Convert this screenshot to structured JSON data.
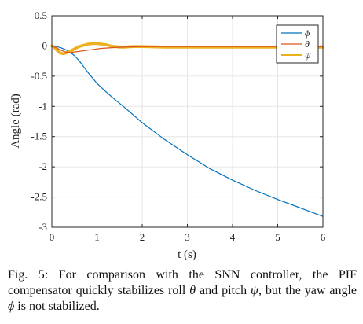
{
  "chart_data": {
    "type": "line",
    "xlabel": "t (s)",
    "ylabel": "Angle (rad)",
    "xlim": [
      0,
      6
    ],
    "ylim": [
      -3,
      0.5
    ],
    "xticks": [
      "0",
      "1",
      "2",
      "3",
      "4",
      "5",
      "6"
    ],
    "yticks": [
      "0.5",
      "0",
      "-0.5",
      "-1",
      "-1.5",
      "-2",
      "-2.5",
      "-3"
    ],
    "grid": true,
    "legend_position": "top-right",
    "series": [
      {
        "name": "ϕ",
        "color": "#0072BD",
        "x": [
          0,
          0.1,
          0.2,
          0.3,
          0.4,
          0.5,
          0.6,
          0.7,
          0.8,
          0.9,
          1.0,
          1.2,
          1.4,
          1.6,
          1.8,
          2.0,
          2.5,
          3.0,
          3.5,
          4.0,
          4.5,
          5.0,
          5.5,
          6.0
        ],
        "y": [
          0,
          -0.01,
          -0.03,
          -0.06,
          -0.1,
          -0.16,
          -0.24,
          -0.34,
          -0.44,
          -0.53,
          -0.62,
          -0.76,
          -0.89,
          -1.01,
          -1.14,
          -1.27,
          -1.55,
          -1.8,
          -2.03,
          -2.22,
          -2.39,
          -2.54,
          -2.68,
          -2.82
        ]
      },
      {
        "name": "θ",
        "color": "#D95319",
        "x": [
          0,
          0.1,
          0.2,
          0.3,
          0.4,
          0.5,
          0.7,
          0.9,
          1.1,
          1.3,
          1.5,
          2.0,
          3.0,
          4.0,
          5.0,
          6.0
        ],
        "y": [
          0,
          -0.03,
          -0.07,
          -0.1,
          -0.11,
          -0.1,
          -0.08,
          -0.06,
          -0.04,
          -0.03,
          -0.02,
          -0.01,
          -0.01,
          -0.01,
          -0.01,
          -0.01
        ]
      },
      {
        "name": "ψ",
        "color": "#EDB120",
        "x": [
          0,
          0.05,
          0.1,
          0.15,
          0.2,
          0.25,
          0.3,
          0.4,
          0.5,
          0.6,
          0.7,
          0.8,
          0.9,
          1.0,
          1.1,
          1.2,
          1.3,
          1.4,
          1.5,
          1.6,
          1.8,
          2.0,
          2.5,
          3.0,
          4.0,
          5.0,
          6.0
        ],
        "y": [
          0,
          -0.02,
          -0.06,
          -0.1,
          -0.12,
          -0.13,
          -0.12,
          -0.09,
          -0.05,
          -0.01,
          0.01,
          0.03,
          0.04,
          0.04,
          0.03,
          0.02,
          0.0,
          -0.01,
          -0.02,
          -0.02,
          -0.01,
          -0.01,
          -0.02,
          -0.02,
          -0.02,
          -0.02,
          -0.02
        ]
      }
    ]
  },
  "caption": {
    "prefix": "Fig. 5: For comparison with the SNN controller, the PIF compensator quickly stabilizes roll ",
    "theta": "θ",
    "middle": " and pitch ",
    "psi": "ψ",
    "middle2": ", but the yaw angle ",
    "phi": "ϕ",
    "suffix": " is not stabilized."
  }
}
